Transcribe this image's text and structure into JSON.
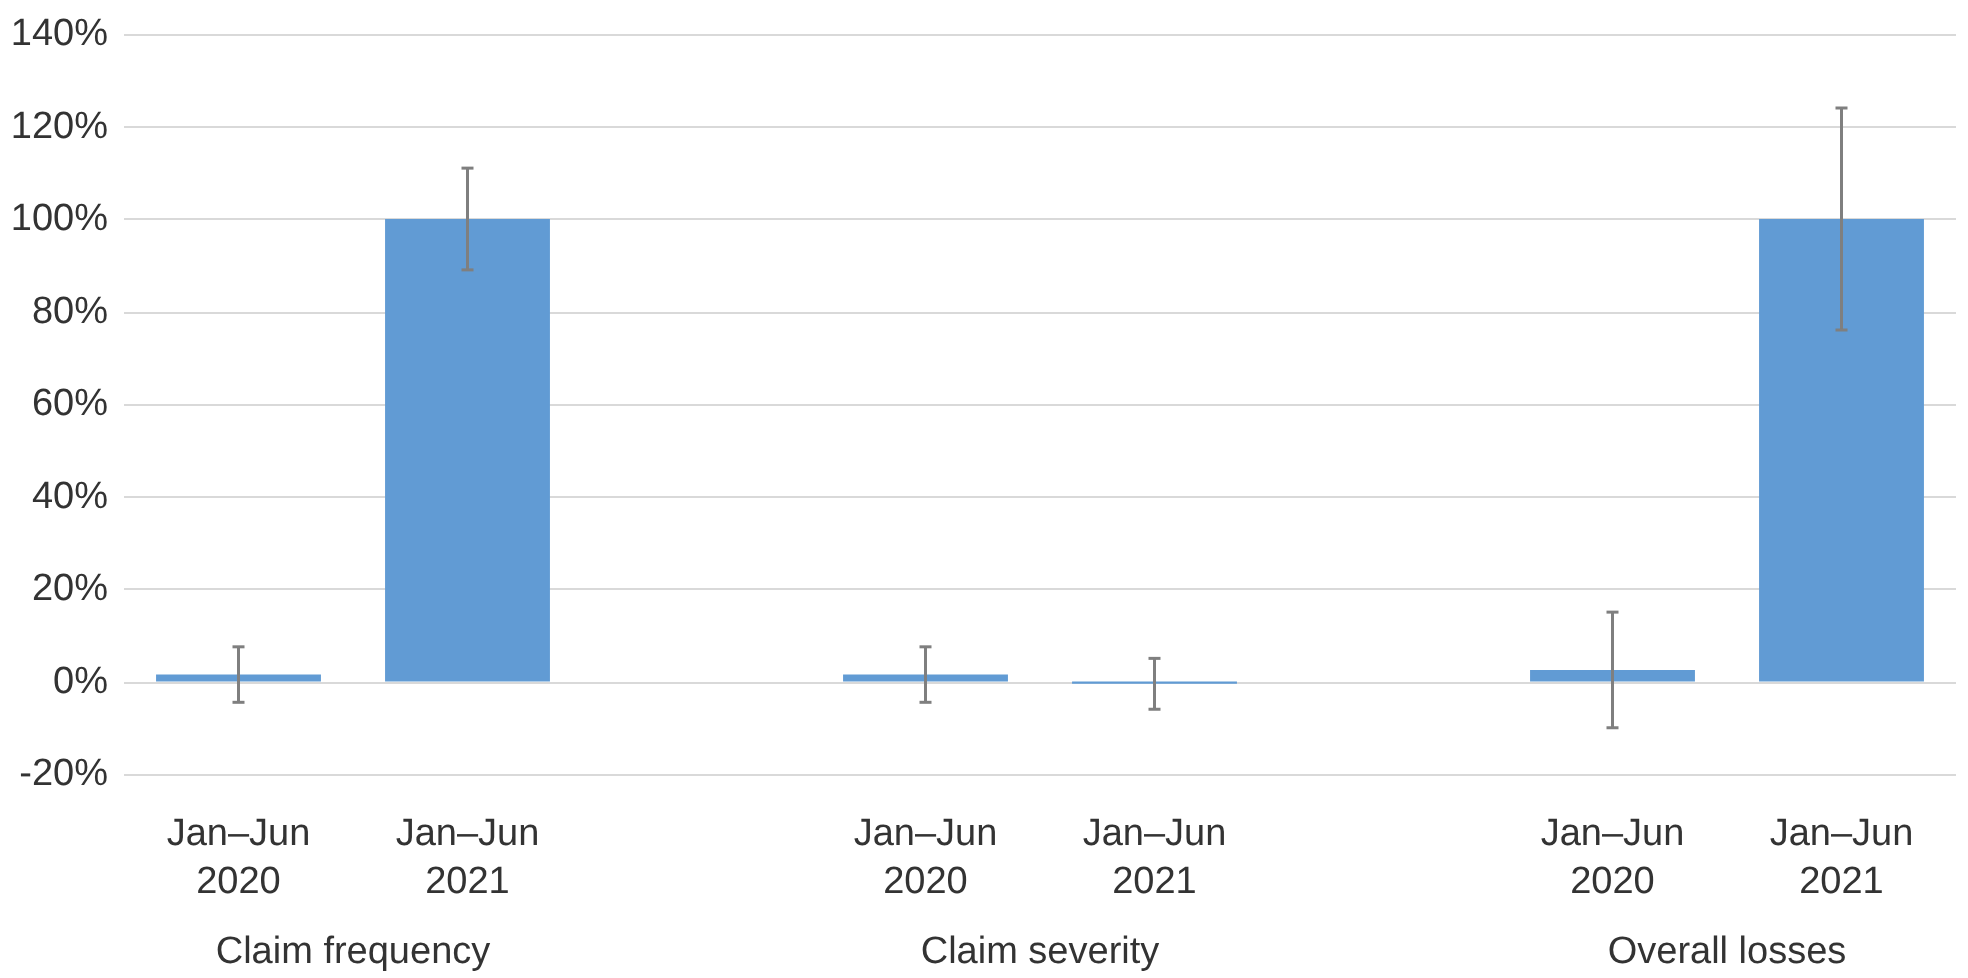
{
  "chart_data": {
    "type": "bar",
    "categories": [
      "Jan–Jun\n2020",
      "Jan–Jun\n2021",
      null,
      "Jan–Jun\n2020",
      "Jan–Jun\n2021",
      null,
      "Jan–Jun\n2020",
      "Jan–Jun\n2021"
    ],
    "values": [
      1.5,
      100,
      null,
      1.5,
      -0.5,
      null,
      2.5,
      100
    ],
    "errors": [
      6,
      11,
      null,
      6,
      5.5,
      null,
      12.5,
      24
    ],
    "color": "#619bd4",
    "annotations": [
      "Claim frequency",
      "Claim severity",
      "Overall losses"
    ],
    "ylim": [
      -20,
      140
    ],
    "yticks": [
      {
        "value": -20,
        "label": "-20%"
      },
      {
        "value": 0,
        "label": "0%"
      },
      {
        "value": 20,
        "label": "20%"
      },
      {
        "value": 40,
        "label": "40%"
      },
      {
        "value": 60,
        "label": "60%"
      },
      {
        "value": 80,
        "label": "80%"
      },
      {
        "value": 100,
        "label": "100%"
      },
      {
        "value": 120,
        "label": "120%"
      },
      {
        "value": 140,
        "label": "140%"
      }
    ],
    "grid": "y"
  }
}
